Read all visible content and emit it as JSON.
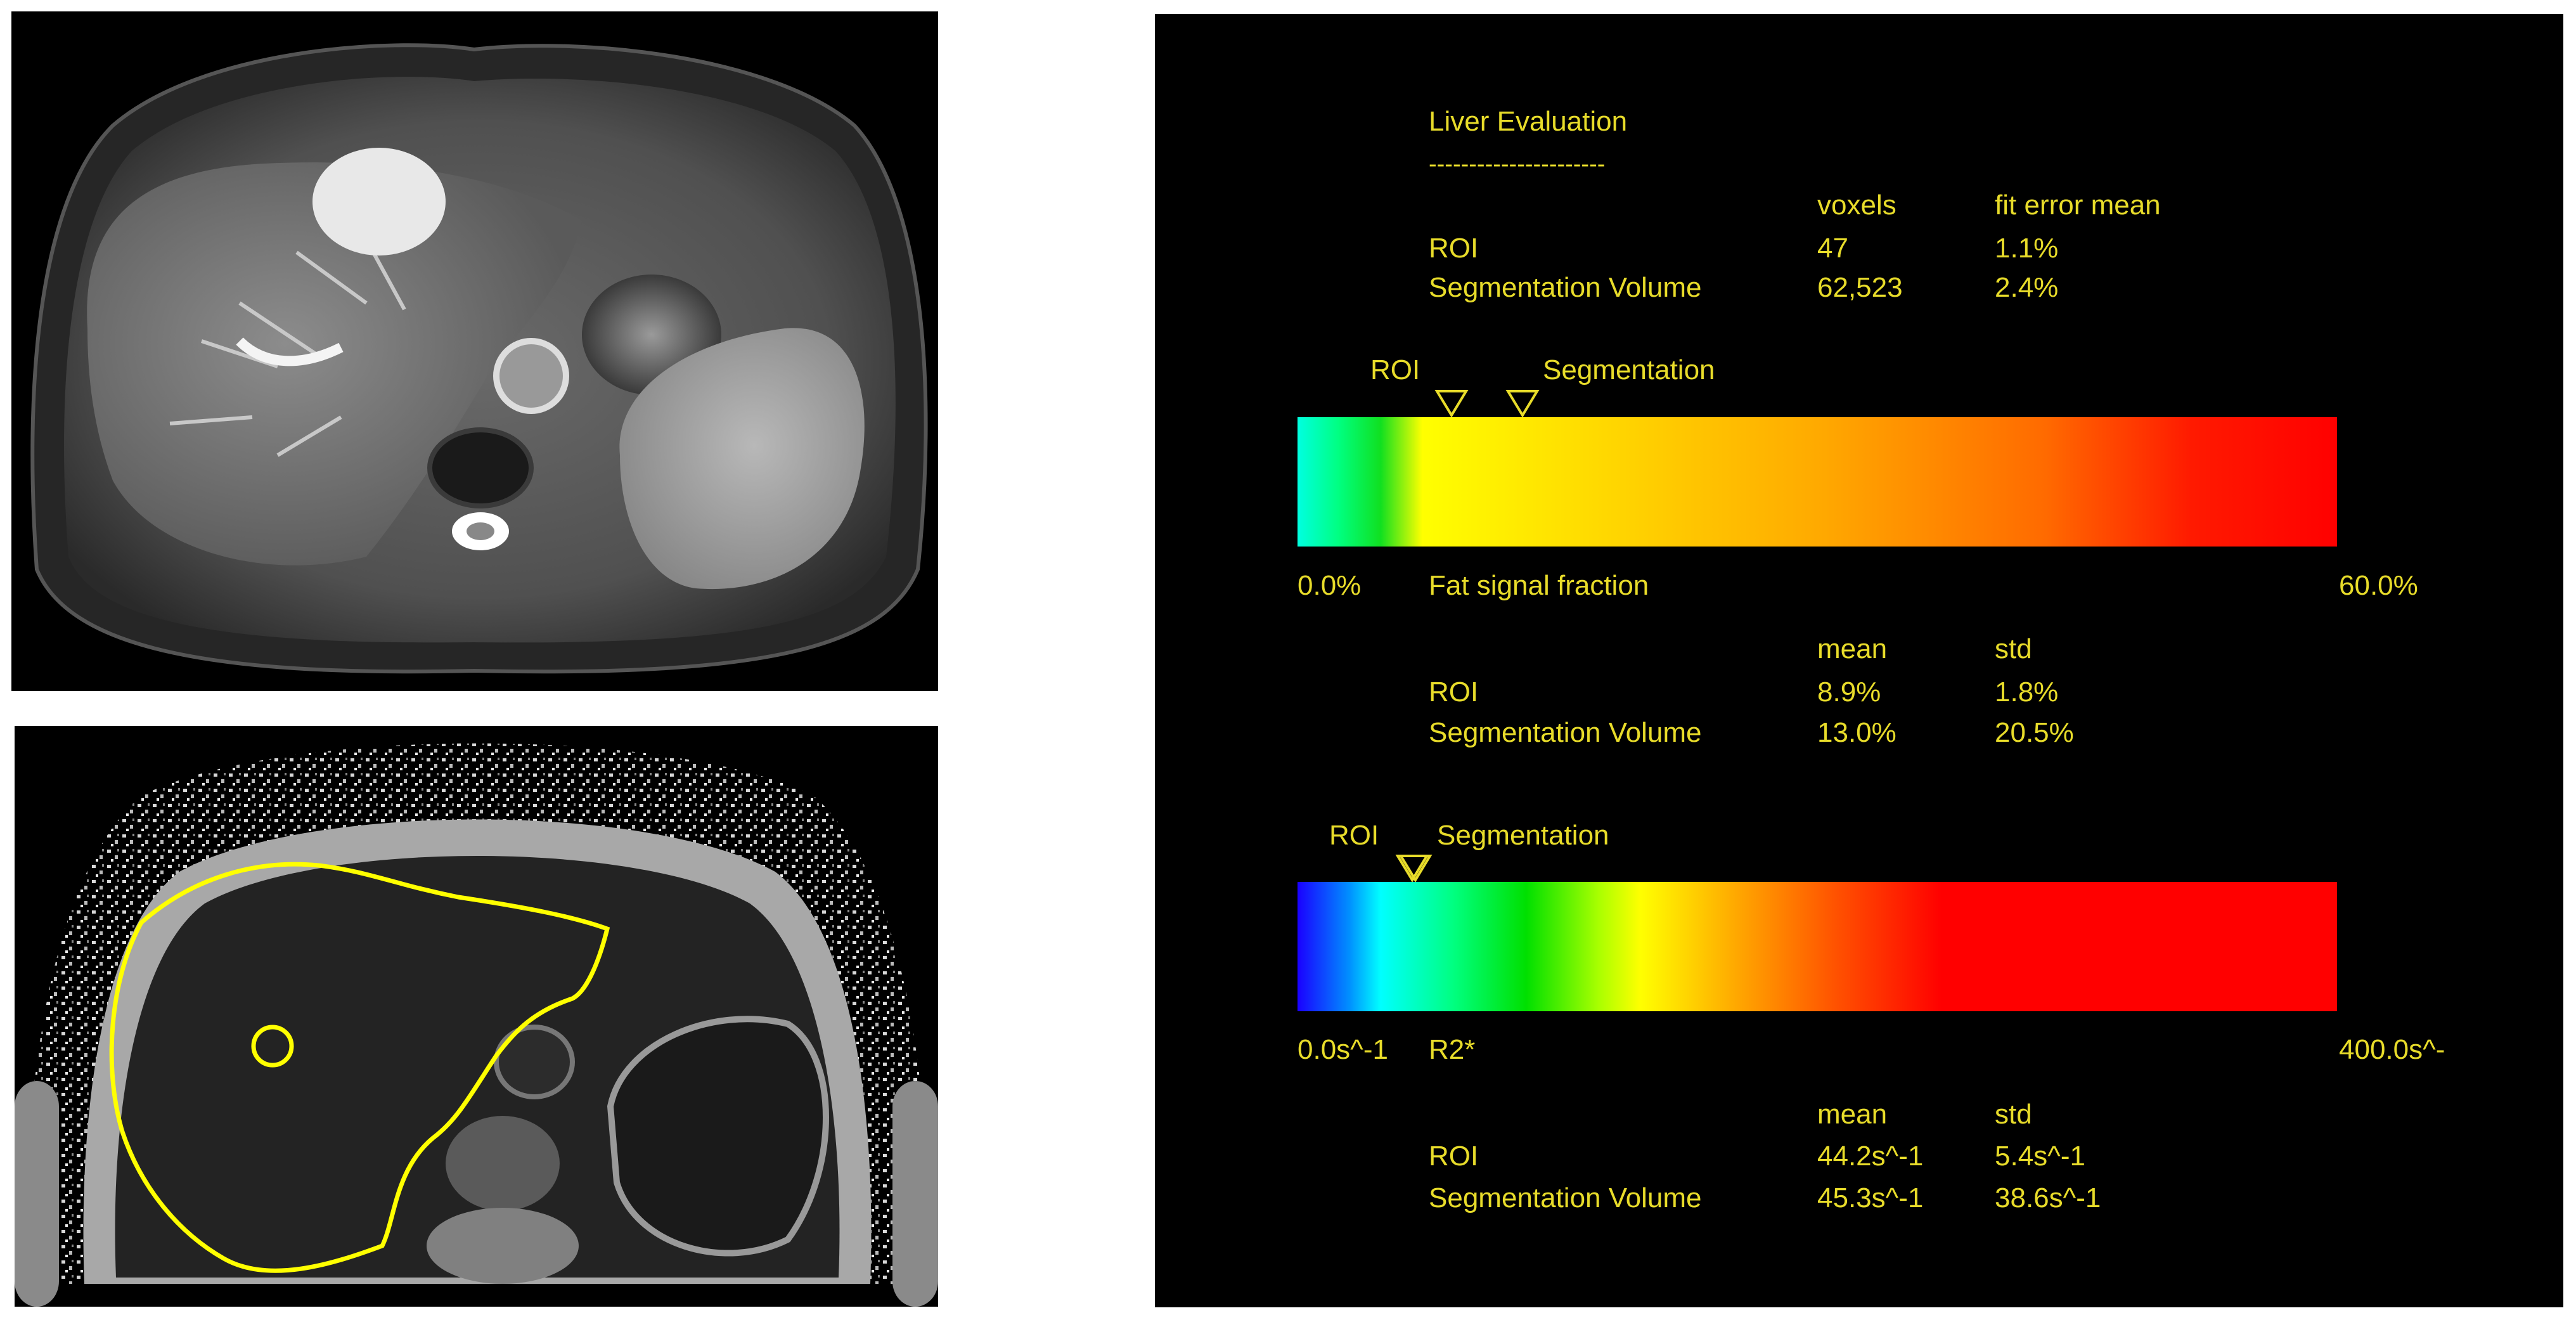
{
  "report": {
    "title": "Liver Evaluation",
    "underline": "----------------------",
    "stats_header": {
      "col1": "voxels",
      "col2": "fit error mean"
    },
    "stats_rows": [
      {
        "label": "ROI",
        "col1": "47",
        "col2": "1.1%"
      },
      {
        "label": "Segmentation Volume",
        "col1": "62,523",
        "col2": "2.4%"
      }
    ],
    "fat_scale": {
      "marker_labels": {
        "roi": "ROI",
        "segmentation": "Segmentation"
      },
      "min_label": "0.0%",
      "name": "Fat signal fraction",
      "max_label": "60.0%",
      "roi_value_percent": 8.9,
      "segmentation_value_percent": 13.0,
      "range": [
        0,
        60
      ],
      "header": {
        "col1": "mean",
        "col2": "std"
      },
      "rows": [
        {
          "label": "ROI",
          "col1": "8.9%",
          "col2": "1.8%"
        },
        {
          "label": "Segmentation Volume",
          "col1": "13.0%",
          "col2": "20.5%"
        }
      ]
    },
    "r2_scale": {
      "marker_labels": {
        "roi": "ROI",
        "segmentation": "Segmentation"
      },
      "min_label": "0.0s^-1",
      "name": "R2*",
      "max_label": "400.0s^-",
      "roi_value": 44.2,
      "segmentation_value": 45.3,
      "range": [
        0,
        400
      ],
      "header": {
        "col1": "mean",
        "col2": "std"
      },
      "rows": [
        {
          "label": "ROI",
          "col1": "44.2s^-1",
          "col2": "5.4s^-1"
        },
        {
          "label": "Segmentation Volume",
          "col1": "45.3s^-1",
          "col2": "38.6s^-1"
        }
      ]
    }
  },
  "colors": {
    "text": "#e8dc2a",
    "background": "#000000",
    "contour": "#ffff00"
  }
}
